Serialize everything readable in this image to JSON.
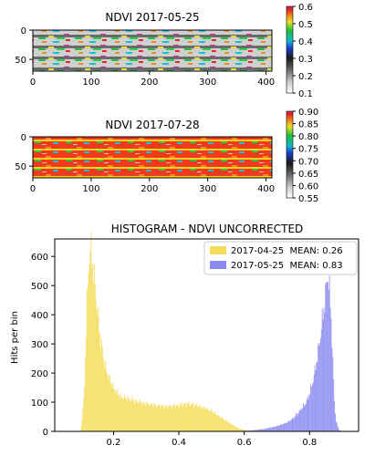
{
  "chart_data": [
    {
      "type": "heatmap",
      "title": "NDVI 2017-05-25",
      "x_ticks": [
        0,
        100,
        200,
        300,
        400
      ],
      "y_ticks": [
        0,
        50
      ],
      "xlim": [
        0,
        410
      ],
      "ylim": [
        0,
        70
      ],
      "colorbar": {
        "ticks": [
          "0.6",
          "0.5",
          "0.4",
          "0.3",
          "0.2",
          "0.1"
        ],
        "range": [
          0.1,
          0.6
        ],
        "colormap": "nipy_spectral"
      }
    },
    {
      "type": "heatmap",
      "title": "NDVI 2017-07-28",
      "x_ticks": [
        0,
        100,
        200,
        300,
        400
      ],
      "y_ticks": [
        0,
        50
      ],
      "xlim": [
        0,
        410
      ],
      "ylim": [
        0,
        70
      ],
      "colorbar": {
        "ticks": [
          "0.90",
          "0.85",
          "0.80",
          "0.75",
          "0.70",
          "0.65",
          "0.60",
          "0.55"
        ],
        "range": [
          0.55,
          0.9
        ],
        "colormap": "nipy_spectral"
      }
    },
    {
      "type": "histogram",
      "title": "HISTOGRAM - NDVI UNCORRECTED",
      "ylabel": "Hits per bin",
      "xlabel": "",
      "x_ticks": [
        "0.2",
        "0.4",
        "0.6",
        "0.8"
      ],
      "y_ticks": [
        "0",
        "100",
        "200",
        "300",
        "400",
        "500",
        "600"
      ],
      "xlim": [
        0.02,
        0.95
      ],
      "ylim": [
        0,
        660
      ],
      "legend_position": "top-right",
      "series": [
        {
          "name": "2017-04-25  MEAN: 0.26",
          "color": "#f5dc5a",
          "points": [
            [
              0.1,
              0
            ],
            [
              0.11,
              120
            ],
            [
              0.12,
              480
            ],
            [
              0.125,
              590
            ],
            [
              0.13,
              630
            ],
            [
              0.135,
              590
            ],
            [
              0.14,
              540
            ],
            [
              0.15,
              420
            ],
            [
              0.16,
              320
            ],
            [
              0.17,
              250
            ],
            [
              0.18,
              200
            ],
            [
              0.2,
              150
            ],
            [
              0.22,
              120
            ],
            [
              0.25,
              110
            ],
            [
              0.28,
              100
            ],
            [
              0.3,
              95
            ],
            [
              0.33,
              90
            ],
            [
              0.36,
              85
            ],
            [
              0.4,
              90
            ],
            [
              0.43,
              95
            ],
            [
              0.45,
              90
            ],
            [
              0.48,
              80
            ],
            [
              0.5,
              70
            ],
            [
              0.52,
              55
            ],
            [
              0.54,
              40
            ],
            [
              0.56,
              25
            ],
            [
              0.58,
              12
            ],
            [
              0.6,
              5
            ],
            [
              0.62,
              2
            ],
            [
              0.64,
              0
            ]
          ]
        },
        {
          "name": "2017-05-25  MEAN: 0.83",
          "color": "#8c8cf0",
          "points": [
            [
              0.58,
              0
            ],
            [
              0.62,
              3
            ],
            [
              0.66,
              8
            ],
            [
              0.7,
              18
            ],
            [
              0.73,
              30
            ],
            [
              0.75,
              45
            ],
            [
              0.77,
              70
            ],
            [
              0.79,
              100
            ],
            [
              0.8,
              130
            ],
            [
              0.81,
              170
            ],
            [
              0.82,
              230
            ],
            [
              0.83,
              300
            ],
            [
              0.84,
              390
            ],
            [
              0.85,
              480
            ],
            [
              0.855,
              540
            ],
            [
              0.86,
              500
            ],
            [
              0.865,
              420
            ],
            [
              0.87,
              280
            ],
            [
              0.875,
              130
            ],
            [
              0.88,
              40
            ],
            [
              0.89,
              5
            ],
            [
              0.9,
              0
            ]
          ]
        }
      ]
    }
  ]
}
